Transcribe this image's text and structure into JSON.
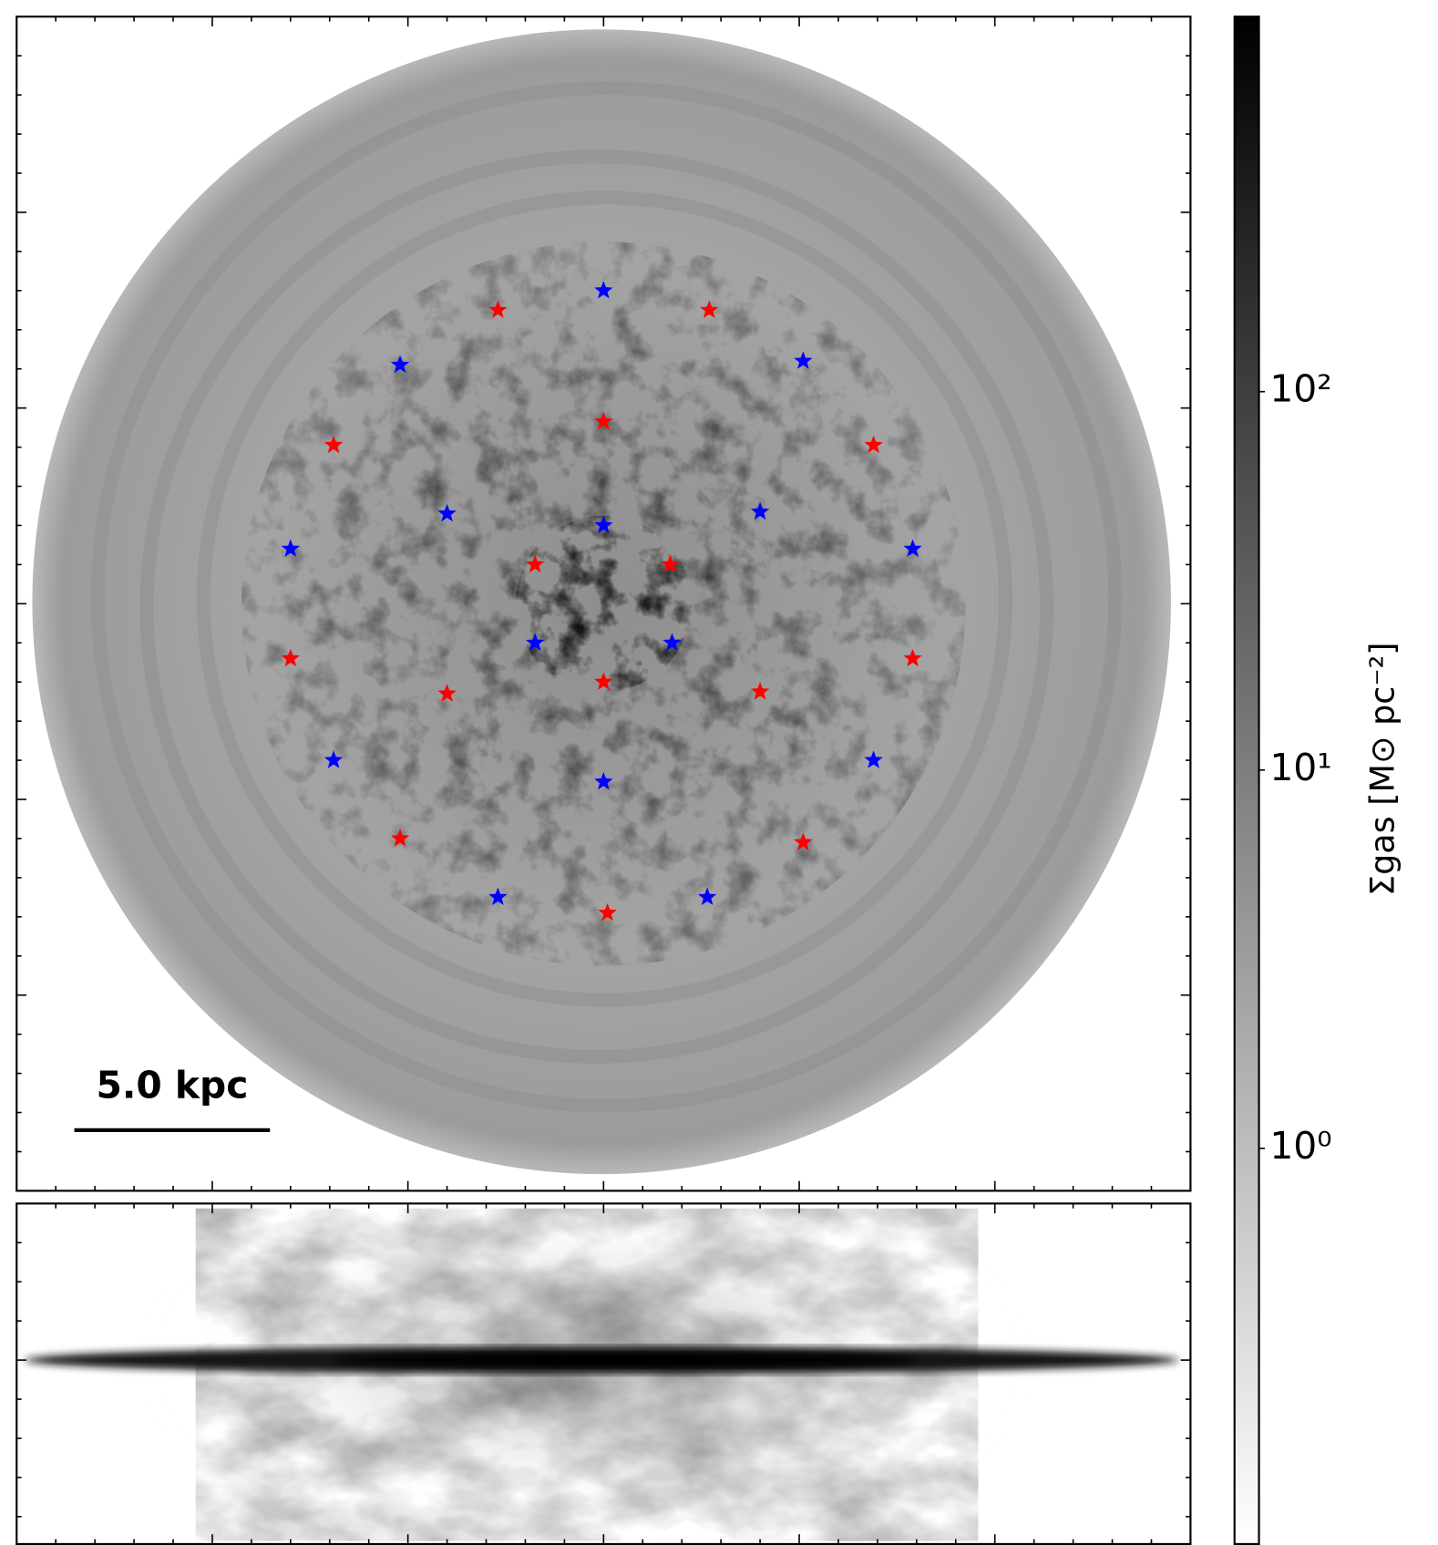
{
  "chart_data": {
    "type": "scatter",
    "xlim": [
      -15,
      15
    ],
    "ylim": [
      -15,
      15
    ],
    "xticks": [
      -10,
      -5,
      0,
      5,
      10
    ],
    "yticks": [
      -10,
      -5,
      0,
      5,
      10
    ],
    "minor_ticks": [
      -14,
      -13,
      -12,
      -11,
      -9,
      -8,
      -7,
      -6,
      -4,
      -3,
      -2,
      -1,
      1,
      2,
      3,
      4,
      6,
      7,
      8,
      9,
      11,
      12,
      13,
      14
    ],
    "edge_ylim": [
      -4.7,
      4
    ],
    "edge_yticks": [
      0
    ],
    "edge_minor_yticks": [
      -4,
      -3,
      -2,
      -1,
      1,
      2,
      3
    ],
    "series": [
      {
        "color": "#0000ff",
        "x": [
          0,
          -5.2,
          5.1,
          -4,
          4,
          0,
          -8,
          7.9,
          -1.75,
          1.75,
          -6.9,
          6.9,
          0,
          -2.7,
          2.65
        ],
        "y": [
          8,
          6.1,
          6.2,
          2.3,
          2.35,
          2,
          1.4,
          1.4,
          -1,
          -1,
          -4,
          -4,
          -4.55,
          -7.5,
          -7.5
        ]
      },
      {
        "color": "#ff0000",
        "x": [
          -2.7,
          2.7,
          0,
          -6.9,
          6.9,
          -1.75,
          1.7,
          -8,
          7.9,
          0,
          -4,
          4,
          -5.2,
          5.1,
          0.1
        ],
        "y": [
          7.5,
          7.5,
          4.65,
          4.05,
          4.05,
          1,
          1,
          -1.4,
          -1.4,
          -2,
          -2.3,
          -2.25,
          -6,
          -6.1,
          -7.9
        ]
      }
    ],
    "scale_bar": {
      "label": "5.0 kpc",
      "length": 5
    },
    "colorbar": {
      "label": "Σgas [M⊙ pc⁻²]",
      "scale": "log",
      "lim": [
        0.09,
        980
      ],
      "ticks": [
        {
          "value": 1,
          "label": "10⁰"
        },
        {
          "value": 10,
          "label": "10¹"
        },
        {
          "value": 100,
          "label": "10²"
        }
      ],
      "colors": [
        "#ffffff",
        "#000000"
      ]
    }
  }
}
